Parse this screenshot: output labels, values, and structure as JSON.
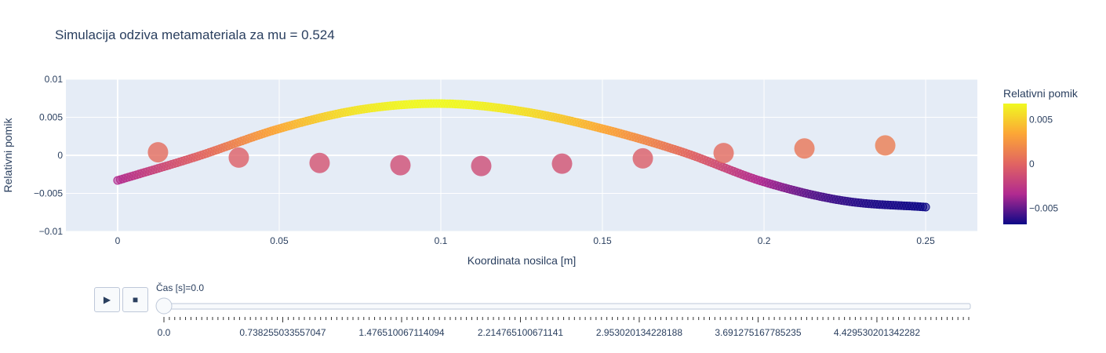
{
  "chart_data": {
    "type": "scatter",
    "title": "Simulacija odziva metamateriala za mu = 0.524",
    "xlabel": "Koordinata nosilca [m]",
    "ylabel": "Relativni pomik",
    "xlim": [
      -0.016,
      0.266
    ],
    "ylim": [
      -0.01,
      0.01
    ],
    "x_ticks": [
      0,
      0.05,
      0.1,
      0.15,
      0.2,
      0.25
    ],
    "x_tick_labels": [
      "0",
      "0.05",
      "0.1",
      "0.15",
      "0.2",
      "0.25"
    ],
    "y_ticks": [
      -0.01,
      -0.005,
      0,
      0.005,
      0.01
    ],
    "y_tick_labels": [
      "−0.01",
      "−0.005",
      "0",
      "0.005",
      "0.01"
    ],
    "grid": true,
    "colorscale": [
      "#0d0887",
      "#b12a90",
      "#e16462",
      "#fca636",
      "#f0f921"
    ],
    "colorbar": {
      "title": "Relativni pomik",
      "range": [
        -0.0068,
        0.0068
      ],
      "ticks": [
        0.005,
        0,
        -0.005
      ],
      "tick_labels": [
        "0.005",
        "0",
        "−0.005"
      ]
    },
    "beam": {
      "x_start": 0,
      "x_end": 0.25,
      "count": 300,
      "curve_x": [
        0,
        0.025,
        0.05,
        0.075,
        0.1,
        0.125,
        0.15,
        0.175,
        0.2,
        0.225,
        0.25
      ],
      "curve_y": [
        -0.0033,
        -0.0001,
        0.0035,
        0.006,
        0.0068,
        0.0058,
        0.0035,
        0.0004,
        -0.0035,
        -0.006,
        -0.0068
      ]
    },
    "resonators": {
      "x": [
        0.0125,
        0.0375,
        0.0625,
        0.0875,
        0.1125,
        0.1375,
        0.1625,
        0.1875,
        0.2125,
        0.2375
      ],
      "y": [
        0.0004,
        -0.0003,
        -0.001,
        -0.0013,
        -0.0014,
        -0.0011,
        -0.0004,
        0.0003,
        0.0009,
        0.0013
      ]
    }
  },
  "slider": {
    "current_label": "Čas [s]=0.0",
    "tick_labels": [
      "0.0",
      "0.738255033557047",
      "1.476510067114094",
      "2.214765100671141",
      "2.953020134228188",
      "3.691275167785235",
      "4.429530201342282"
    ],
    "step_count": 150,
    "value_fraction": 0
  },
  "controls": {
    "play_icon": "play-icon",
    "stop_icon": "stop-icon",
    "play_glyph": "▶",
    "stop_glyph": "■"
  }
}
